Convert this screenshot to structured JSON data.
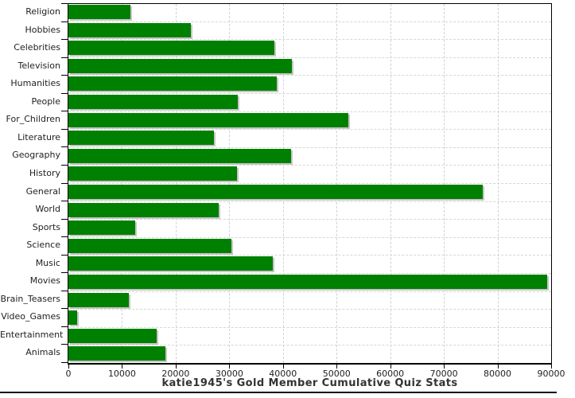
{
  "chart_data": {
    "type": "bar",
    "orientation": "horizontal",
    "title": "katie1945's Gold Member Cumulative Quiz Stats",
    "categories": [
      "Religion",
      "Hobbies",
      "Celebrities",
      "Television",
      "Humanities",
      "People",
      "For_Children",
      "Literature",
      "Geography",
      "History",
      "General",
      "World",
      "Sports",
      "Science",
      "Music",
      "Movies",
      "Brain_Teasers",
      "Video_Games",
      "Entertainment",
      "Animals"
    ],
    "values": [
      11500,
      22900,
      38400,
      41700,
      38900,
      31600,
      52200,
      27200,
      41500,
      31500,
      77300,
      28000,
      12400,
      30400,
      38100,
      89200,
      11300,
      1700,
      16500,
      18100
    ],
    "xlim": [
      0,
      90000
    ],
    "x_ticks": [
      0,
      10000,
      20000,
      30000,
      40000,
      50000,
      60000,
      70000,
      80000,
      90000
    ],
    "bar_color": "#008000",
    "grid": true,
    "legend": "none",
    "title_position": "bottom"
  }
}
